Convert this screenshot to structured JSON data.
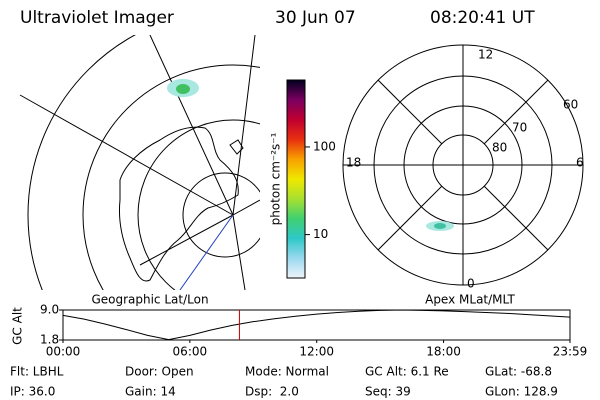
{
  "header": {
    "title": "Ultraviolet Imager",
    "date": "30 Jun 07",
    "time": "08:20:41 UT"
  },
  "left_panel": {
    "label": "Geographic Lat/Lon"
  },
  "right_panel": {
    "label": "Apex MLat/MLT",
    "mlt_labels": [
      "12",
      "18",
      "6",
      "0"
    ],
    "mlat_labels": [
      "60",
      "70",
      "80"
    ]
  },
  "colorbar": {
    "label": "photon cm⁻²s⁻¹",
    "log": true,
    "lim": [
      3.2,
      580
    ],
    "ticks": [
      10,
      100
    ],
    "colors": [
      "#eef4fa",
      "#9ad8ee",
      "#2ec8c8",
      "#40d070",
      "#a8e030",
      "#f0e800",
      "#f8a000",
      "#e83010",
      "#c00030",
      "#7a0060",
      "#000020"
    ]
  },
  "altitude": {
    "type": "line",
    "ylabel": "GC Alt",
    "color": "#000000",
    "marker_color": "#cc0000",
    "x": [
      0,
      1,
      2,
      3,
      4,
      5,
      6,
      7,
      8,
      9,
      10,
      11,
      12,
      13,
      14,
      15,
      16,
      17,
      18,
      19,
      20,
      21,
      22,
      23,
      23.98
    ],
    "values": [
      7.7,
      6.8,
      5.6,
      4.3,
      2.9,
      1.9,
      2.9,
      4.2,
      5.3,
      6.2,
      6.9,
      7.5,
      8.0,
      8.4,
      8.7,
      8.9,
      9.0,
      8.9,
      8.8,
      8.6,
      8.4,
      8.2,
      7.9,
      7.6,
      7.3
    ],
    "marker_time": 8.345,
    "xlim": [
      0,
      23.98
    ],
    "ylim": [
      1.8,
      9.0
    ],
    "xticks": [
      {
        "value": 0,
        "label": "00:00"
      },
      {
        "value": 6,
        "label": "06:00"
      },
      {
        "value": 12,
        "label": "12:00"
      },
      {
        "value": 18,
        "label": "18:00"
      },
      {
        "value": 23.98,
        "label": "23:59"
      }
    ],
    "yticks": [
      {
        "value": 9.0,
        "label": "9.0"
      },
      {
        "value": 1.8,
        "label": "1.8"
      }
    ]
  },
  "footer": {
    "rows": [
      [
        "Flt: LBHL",
        "Door: Open",
        "Mode: Normal",
        "GC Alt: 6.1 Re",
        "GLat: -68.8"
      ],
      [
        "IP: 36.0",
        "Gain: 14",
        "Dsp:  2.0",
        "Seq: 39",
        "GLon: 128.9"
      ]
    ]
  }
}
